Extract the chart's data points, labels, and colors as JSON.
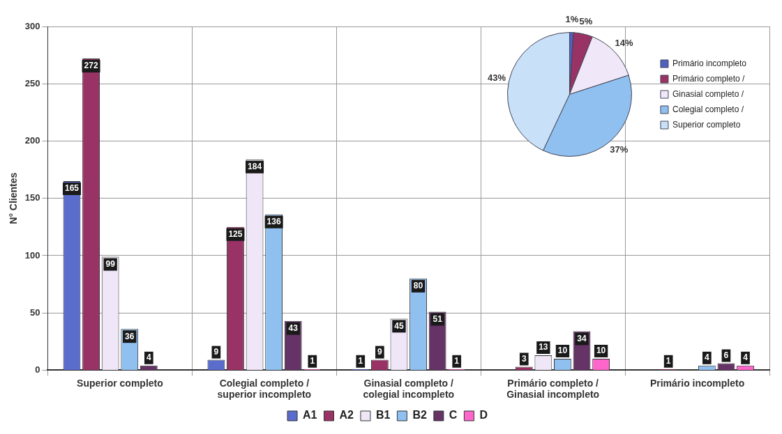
{
  "chart_data": [
    {
      "type": "bar",
      "ylabel": "N° Clientes",
      "categories": [
        "Superior completo",
        "Colegial completo / superior incompleto",
        "Ginasial completo / colegial incompleto",
        "Primário completo / Ginasial incompleto",
        "Primário incompleto"
      ],
      "series": [
        {
          "name": "A1",
          "color": "#5a6ccc",
          "values": [
            165,
            9,
            1,
            null,
            null
          ]
        },
        {
          "name": "A2",
          "color": "#993366",
          "values": [
            272,
            125,
            9,
            3,
            1
          ]
        },
        {
          "name": "B1",
          "color": "#efe6f7",
          "values": [
            99,
            184,
            45,
            13,
            null
          ]
        },
        {
          "name": "B2",
          "color": "#8fc0f0",
          "values": [
            36,
            136,
            80,
            10,
            4
          ]
        },
        {
          "name": "C",
          "color": "#663366",
          "values": [
            4,
            43,
            51,
            34,
            6
          ]
        },
        {
          "name": "D",
          "color": "#ff66cc",
          "values": [
            null,
            1,
            1,
            10,
            4
          ]
        }
      ],
      "ylim": [
        0,
        300
      ],
      "yticks": [
        0,
        50,
        100,
        150,
        200,
        250,
        300
      ],
      "grid": true,
      "legend": "bottom",
      "data_labels": true
    },
    {
      "type": "pie",
      "categories": [
        "Primário incompleto",
        "Primário completo /",
        "Ginasial completo /",
        "Colegial completo /",
        "Superior completo"
      ],
      "values": [
        1,
        5,
        14,
        37,
        43
      ],
      "value_labels": [
        "1%",
        "5%",
        "14%",
        "37%",
        "43%"
      ],
      "colors": [
        "#5060c0",
        "#993366",
        "#f0e8f8",
        "#8fc0f0",
        "#c8e0f8"
      ],
      "legend": "right"
    }
  ]
}
